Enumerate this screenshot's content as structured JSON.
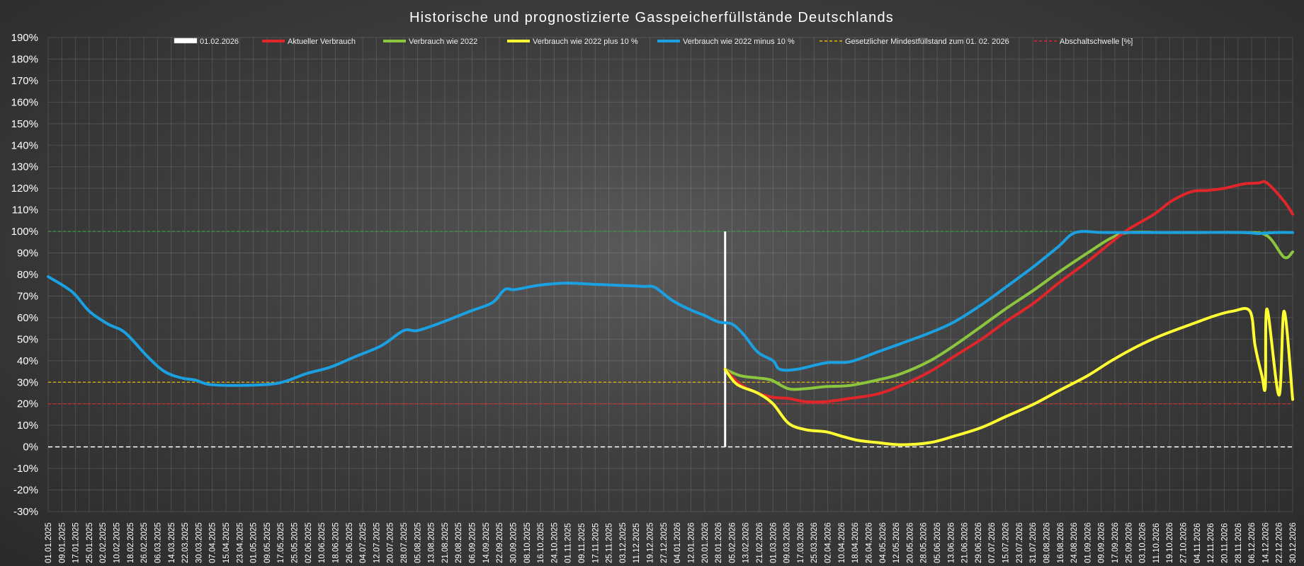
{
  "chart_data": {
    "type": "line",
    "title": "Historische und prognostizierte Gasspeicherfüllstände Deutschlands",
    "xlabel": "",
    "ylabel": "",
    "ylim": [
      -30,
      190
    ],
    "yticks": [
      190,
      180,
      170,
      160,
      150,
      140,
      130,
      120,
      110,
      100,
      90,
      80,
      70,
      60,
      50,
      40,
      30,
      20,
      10,
      0,
      -10,
      -20,
      -30
    ],
    "ytick_labels": [
      "190%",
      "180%",
      "170%",
      "160%",
      "150%",
      "140%",
      "130%",
      "120%",
      "110%",
      "100%",
      "90%",
      "80%",
      "70%",
      "60%",
      "50%",
      "40%",
      "30%",
      "20%",
      "10%",
      "0%",
      "-10%",
      "-20%",
      "-30%"
    ],
    "x_start": "01.01.2025",
    "x_end": "30.12.2026",
    "x_tick_labels": [
      "01.01.2025",
      "09.01.2025",
      "17.01.2025",
      "25.01.2025",
      "02.02.2025",
      "10.02.2025",
      "18.02.2025",
      "26.02.2025",
      "06.03.2025",
      "14.03.2025",
      "22.03.2025",
      "30.03.2025",
      "07.04.2025",
      "15.04.2025",
      "23.04.2025",
      "01.05.2025",
      "09.05.2025",
      "17.05.2025",
      "25.05.2025",
      "02.06.2025",
      "10.06.2025",
      "18.06.2025",
      "26.06.2025",
      "04.07.2025",
      "12.07.2025",
      "20.07.2025",
      "28.07.2025",
      "05.08.2025",
      "13.08.2025",
      "21.08.2025",
      "29.08.2025",
      "06.09.2025",
      "14.09.2025",
      "22.09.2025",
      "30.09.2025",
      "08.10.2025",
      "16.10.2025",
      "24.10.2025",
      "01.11.2025",
      "09.11.2025",
      "17.11.2025",
      "25.11.2025",
      "03.12.2025",
      "11.12.2025",
      "19.12.2025",
      "27.12.2025",
      "04.01.2026",
      "12.01.2026",
      "20.01.2026",
      "28.01.2026",
      "05.02.2026",
      "13.02.2026",
      "21.02.2026",
      "01.03.2026",
      "09.03.2026",
      "17.03.2026",
      "25.03.2026",
      "02.04.2026",
      "10.04.2026",
      "18.04.2026",
      "26.04.2026",
      "04.05.2026",
      "12.05.2026",
      "20.05.2026",
      "28.05.2026",
      "05.06.2026",
      "13.06.2026",
      "21.06.2026",
      "29.06.2026",
      "07.07.2026",
      "15.07.2026",
      "23.07.2026",
      "31.07.2026",
      "08.08.2026",
      "16.08.2026",
      "24.08.2026",
      "01.09.2026",
      "09.09.2026",
      "17.09.2026",
      "25.09.2026",
      "03.10.2026",
      "11.10.2026",
      "19.10.2026",
      "27.10.2026",
      "04.11.2026",
      "12.11.2026",
      "20.11.2026",
      "28.11.2026",
      "06.12.2026",
      "14.12.2026",
      "22.12.2026",
      "30.12.2026"
    ],
    "grid": true,
    "legend_position": "top",
    "marker_date": "01.02.2026",
    "reference_lines": [
      {
        "name": "Gesetzlicher Mindestfüllstand zum 01. 02. 2026",
        "value": 30,
        "color": "#e6b800",
        "style": "dashed"
      },
      {
        "name": "Abschaltschwelle [%]",
        "value": 20,
        "color": "#e0262b",
        "style": "dashed"
      },
      {
        "name": "",
        "value": 100,
        "color": "#2e9e3e",
        "style": "dashed"
      },
      {
        "name": "",
        "value": 0,
        "color": "#ffffff",
        "style": "dashed"
      }
    ],
    "series": [
      {
        "name": "Verbrauch wie 2022 minus 10 %",
        "color": "#1ba1e2",
        "points": [
          [
            "01.01.2025",
            79
          ],
          [
            "15.01.2025",
            72
          ],
          [
            "25.01.2025",
            63
          ],
          [
            "05.02.2025",
            57
          ],
          [
            "15.02.2025",
            53
          ],
          [
            "28.02.2025",
            42
          ],
          [
            "10.03.2025",
            35
          ],
          [
            "20.03.2025",
            32
          ],
          [
            "28.03.2025",
            31
          ],
          [
            "05.04.2025",
            29
          ],
          [
            "20.04.2025",
            28.5
          ],
          [
            "10.05.2025",
            29
          ],
          [
            "20.05.2025",
            30.5
          ],
          [
            "01.06.2025",
            34
          ],
          [
            "15.06.2025",
            37
          ],
          [
            "30.06.2025",
            42
          ],
          [
            "15.07.2025",
            47
          ],
          [
            "28.07.2025",
            54
          ],
          [
            "05.08.2025",
            54
          ],
          [
            "20.08.2025",
            58
          ],
          [
            "05.09.2025",
            63
          ],
          [
            "18.09.2025",
            67
          ],
          [
            "25.09.2025",
            73
          ],
          [
            "01.10.2025",
            73
          ],
          [
            "15.10.2025",
            75
          ],
          [
            "30.10.2025",
            76
          ],
          [
            "15.11.2025",
            75.5
          ],
          [
            "30.11.2025",
            75
          ],
          [
            "15.12.2025",
            74.5
          ],
          [
            "22.12.2025",
            74
          ],
          [
            "01.01.2026",
            68
          ],
          [
            "12.01.2026",
            63.5
          ],
          [
            "20.01.2026",
            61
          ],
          [
            "28.01.2026",
            58
          ],
          [
            "05.02.2026",
            57
          ],
          [
            "12.02.2026",
            52
          ],
          [
            "20.02.2026",
            44
          ],
          [
            "01.03.2026",
            40
          ],
          [
            "05.03.2026",
            36
          ],
          [
            "15.03.2026",
            36
          ],
          [
            "01.04.2026",
            39
          ],
          [
            "15.04.2026",
            39.5
          ],
          [
            "01.05.2026",
            44
          ],
          [
            "15.05.2026",
            48
          ],
          [
            "01.06.2026",
            53
          ],
          [
            "15.06.2026",
            58
          ],
          [
            "01.07.2026",
            66
          ],
          [
            "15.07.2026",
            74
          ],
          [
            "01.08.2026",
            84
          ],
          [
            "15.08.2026",
            93
          ],
          [
            "25.08.2026",
            99.5
          ],
          [
            "10.09.2026",
            99.5
          ],
          [
            "01.10.2026",
            99.5
          ],
          [
            "01.11.2026",
            99.5
          ],
          [
            "01.12.2026",
            99.5
          ],
          [
            "10.12.2026",
            99
          ],
          [
            "20.12.2026",
            99.5
          ],
          [
            "30.12.2026",
            99.5
          ]
        ]
      },
      {
        "name": "Verbrauch wie 2022",
        "color": "#8cc63f",
        "points": [
          [
            "01.02.2026",
            36
          ],
          [
            "10.02.2026",
            33
          ],
          [
            "20.02.2026",
            32
          ],
          [
            "28.02.2026",
            31
          ],
          [
            "10.03.2026",
            27
          ],
          [
            "20.03.2026",
            27
          ],
          [
            "01.04.2026",
            28
          ],
          [
            "15.04.2026",
            28.5
          ],
          [
            "01.05.2026",
            31
          ],
          [
            "15.05.2026",
            34
          ],
          [
            "01.06.2026",
            40
          ],
          [
            "15.06.2026",
            47
          ],
          [
            "01.07.2026",
            56
          ],
          [
            "15.07.2026",
            64
          ],
          [
            "01.08.2026",
            73
          ],
          [
            "15.08.2026",
            81
          ],
          [
            "01.09.2026",
            90
          ],
          [
            "15.09.2026",
            97
          ],
          [
            "25.09.2026",
            99.5
          ],
          [
            "15.10.2026",
            99.5
          ],
          [
            "01.11.2026",
            99.5
          ],
          [
            "01.12.2026",
            99.5
          ],
          [
            "15.12.2026",
            98
          ],
          [
            "25.12.2026",
            94
          ],
          [
            "01.01.2026",
            88
          ]
        ],
        "tail": [
          [
            "25.12.2026",
            88
          ],
          [
            "30.12.2026",
            90.5
          ]
        ]
      },
      {
        "name": "Aktueller Verbrauch",
        "color": "#e0262b",
        "points": [
          [
            "01.02.2026",
            36
          ],
          [
            "10.02.2026",
            29
          ],
          [
            "20.02.2026",
            25
          ],
          [
            "01.03.2026",
            23
          ],
          [
            "10.03.2026",
            22.5
          ],
          [
            "20.03.2026",
            21
          ],
          [
            "01.04.2026",
            21
          ],
          [
            "15.04.2026",
            22.5
          ],
          [
            "01.05.2026",
            24.5
          ],
          [
            "15.05.2026",
            28.5
          ],
          [
            "01.06.2026",
            35
          ],
          [
            "15.06.2026",
            42
          ],
          [
            "01.07.2026",
            50
          ],
          [
            "15.07.2026",
            58
          ],
          [
            "01.08.2026",
            67
          ],
          [
            "15.08.2026",
            76
          ],
          [
            "01.09.2026",
            86
          ],
          [
            "15.09.2026",
            95
          ],
          [
            "25.09.2026",
            101
          ],
          [
            "10.10.2026",
            108
          ],
          [
            "20.10.2026",
            114
          ],
          [
            "01.11.2026",
            118.5
          ],
          [
            "10.11.2026",
            119
          ],
          [
            "20.11.2026",
            120
          ],
          [
            "01.12.2026",
            122
          ],
          [
            "10.12.2026",
            122.5
          ],
          [
            "15.12.2026",
            122.5
          ],
          [
            "05.12.2026",
            121
          ],
          [
            "15.12.2026",
            117
          ],
          [
            "25.12.2026",
            114
          ],
          [
            "30.12.2026",
            108
          ]
        ]
      },
      {
        "name": "Verbrauch wie 2022 plus 10 %",
        "color": "#ffff33",
        "points": [
          [
            "01.02.2026",
            36
          ],
          [
            "08.02.2026",
            29
          ],
          [
            "20.02.2026",
            25
          ],
          [
            "01.03.2026",
            20
          ],
          [
            "10.03.2026",
            11
          ],
          [
            "20.03.2026",
            8
          ],
          [
            "01.04.2026",
            7
          ],
          [
            "10.04.2026",
            5
          ],
          [
            "20.04.2026",
            3
          ],
          [
            "01.05.2026",
            2
          ],
          [
            "15.05.2026",
            1
          ],
          [
            "01.06.2026",
            2
          ],
          [
            "15.06.2026",
            5
          ],
          [
            "01.07.2026",
            9
          ],
          [
            "15.07.2026",
            14
          ],
          [
            "01.08.2026",
            20
          ],
          [
            "15.08.2026",
            26
          ],
          [
            "01.09.2026",
            33
          ],
          [
            "15.09.2026",
            40
          ],
          [
            "01.10.2026",
            47
          ],
          [
            "15.10.2026",
            52
          ],
          [
            "01.11.2026",
            57
          ],
          [
            "15.11.2026",
            61
          ],
          [
            "25.11.2026",
            63
          ],
          [
            "05.12.2026",
            63
          ],
          [
            "15.12.2026",
            64
          ],
          [
            "25.12.2026",
            63
          ],
          [
            "30.12.2026",
            22
          ]
        ]
      }
    ],
    "legend": [
      {
        "name": "01.02.2026",
        "color": "#ffffff",
        "style": "solid-thick"
      },
      {
        "name": "Aktueller Verbrauch",
        "color": "#e0262b",
        "style": "solid"
      },
      {
        "name": "Verbrauch wie 2022",
        "color": "#8cc63f",
        "style": "solid"
      },
      {
        "name": "Verbrauch wie 2022 plus 10 %",
        "color": "#ffff33",
        "style": "solid"
      },
      {
        "name": "Verbrauch wie 2022 minus 10 %",
        "color": "#1ba1e2",
        "style": "solid"
      },
      {
        "name": "Gesetzlicher Mindestfüllstand zum 01. 02. 2026",
        "color": "#e6b800",
        "style": "dashed"
      },
      {
        "name": "Abschaltschwelle [%]",
        "color": "#e0262b",
        "style": "dashed"
      }
    ]
  }
}
